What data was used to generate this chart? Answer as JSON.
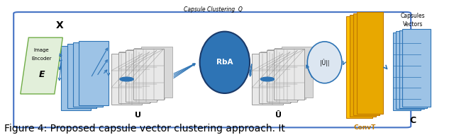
{
  "caption": "Figure 4: Proposed capsule vector clustering approach. It",
  "caption_fontsize": 10,
  "fig_bg": "#ffffff",
  "main_box_color": "#4472c4",
  "green_fill": "#e2efda",
  "green_edge": "#70ad47",
  "blue_fill": "#9dc3e6",
  "blue_edge": "#2e74b5",
  "dark_blue": "#2e74b5",
  "grid_fill": "#f2f2f2",
  "grid_edge": "#aaaaaa",
  "yellow_fill": "#ffc000",
  "yellow_edge": "#c07800",
  "caps_fill": "#9dc3e6",
  "caps_edge": "#2e74b5",
  "rba_fill": "#2e74b5",
  "rba_edge": "#1a3a6a",
  "norm_fill": "#dce6f1",
  "norm_edge": "#2e74b5",
  "capsule_cluster_label": "Capsule Clustering  Q",
  "encoder_label": "Image\nEncoder\n",
  "encoder_e": "E",
  "x_label": "X",
  "u_label": "U",
  "u_hat_label": "Û",
  "rba_label": "RbA",
  "convt_label": "ConvT",
  "norm_label": "|Û||",
  "c_label": "C",
  "caps_label1": "Capsules",
  "caps_label2": "Vectors"
}
